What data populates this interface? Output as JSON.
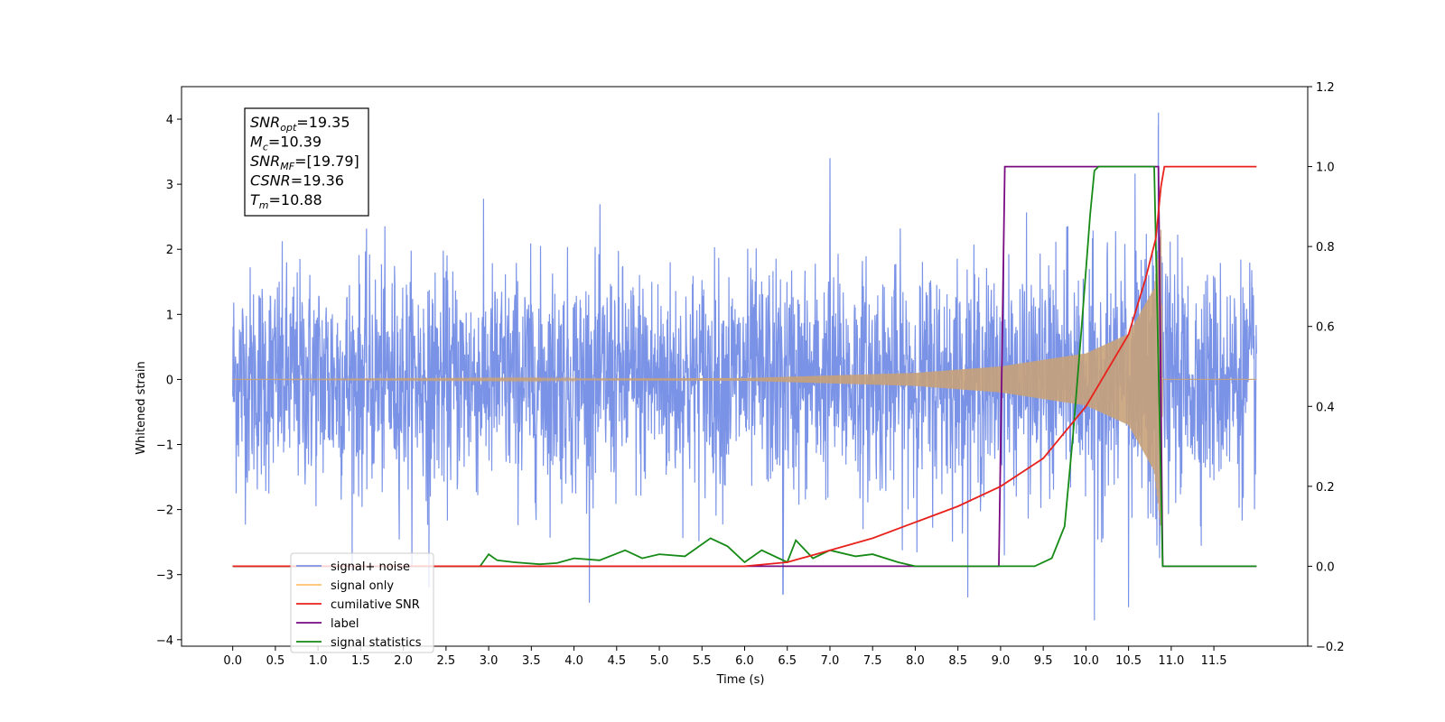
{
  "chart_data": {
    "type": "line",
    "xlabel": "Time (s)",
    "ylabel": "Whitened strain",
    "xlim": [
      -0.6,
      12.6
    ],
    "ylim": [
      -4.1,
      4.5
    ],
    "y2lim": [
      -0.2,
      1.2
    ],
    "grid": false,
    "legend_position": "lower-left",
    "x_ticks": [
      "0.0",
      "0.5",
      "1.0",
      "1.5",
      "2.0",
      "2.5",
      "3.0",
      "3.5",
      "4.0",
      "4.5",
      "5.0",
      "5.5",
      "6.0",
      "6.5",
      "7.0",
      "7.5",
      "8.0",
      "8.5",
      "9.0",
      "9.5",
      "10.0",
      "10.5",
      "11.0",
      "11.5"
    ],
    "y_ticks": [
      "4",
      "3",
      "2",
      "1",
      "0",
      "−1",
      "−2",
      "−3",
      "−4"
    ],
    "y2_ticks": [
      "1.2",
      "1.0",
      "0.8",
      "0.6",
      "0.4",
      "0.2",
      "0.0",
      "−0.2"
    ],
    "annotation": {
      "lines": [
        {
          "base": "SNR",
          "sub": "opt",
          "rest": "=19.35"
        },
        {
          "base": "M",
          "sub": "c",
          "rest": "=10.39"
        },
        {
          "base": "SNR",
          "sub": "MF",
          "rest": "=[19.79]"
        },
        {
          "base": "CSNR",
          "sub": "",
          "rest": "=19.36"
        },
        {
          "base": "T",
          "sub": "m",
          "rest": "=10.88"
        }
      ]
    },
    "series": [
      {
        "name": "signal+ noise",
        "axis": "left",
        "color": "#7b93e6",
        "x_range": [
          0.0,
          12.0
        ],
        "noise_std": 0.85,
        "visible_extremes": [
          {
            "x": 7.0,
            "y": 3.4
          },
          {
            "x": 10.85,
            "y": 4.1
          },
          {
            "x": 10.1,
            "y": -3.7
          },
          {
            "x": 10.5,
            "y": -3.5
          },
          {
            "x": 2.3,
            "y": -3.2
          },
          {
            "x": 6.45,
            "y": -3.3
          }
        ]
      },
      {
        "name": "signal only",
        "axis": "left",
        "color": "#c8a27a",
        "x_range": [
          0.0,
          12.0
        ],
        "envelope_points": [
          {
            "x": 0.0,
            "y": 0.0
          },
          {
            "x": 6.0,
            "y": 0.02
          },
          {
            "x": 8.0,
            "y": 0.1
          },
          {
            "x": 9.0,
            "y": 0.2
          },
          {
            "x": 10.0,
            "y": 0.4
          },
          {
            "x": 10.5,
            "y": 0.7
          },
          {
            "x": 10.8,
            "y": 1.4
          },
          {
            "x": 10.88,
            "y": 2.3
          },
          {
            "x": 10.9,
            "y": 0.0
          },
          {
            "x": 12.0,
            "y": 0.0
          }
        ]
      },
      {
        "name": "cumilative SNR",
        "axis": "right",
        "color": "#e8211c",
        "points": [
          {
            "x": 0.0,
            "y": 0.0
          },
          {
            "x": 6.0,
            "y": 0.0
          },
          {
            "x": 6.5,
            "y": 0.01
          },
          {
            "x": 7.0,
            "y": 0.04
          },
          {
            "x": 7.5,
            "y": 0.07
          },
          {
            "x": 8.0,
            "y": 0.11
          },
          {
            "x": 8.5,
            "y": 0.15
          },
          {
            "x": 9.0,
            "y": 0.2
          },
          {
            "x": 9.5,
            "y": 0.27
          },
          {
            "x": 10.0,
            "y": 0.4
          },
          {
            "x": 10.5,
            "y": 0.58
          },
          {
            "x": 10.7,
            "y": 0.72
          },
          {
            "x": 10.82,
            "y": 0.82
          },
          {
            "x": 10.88,
            "y": 0.95
          },
          {
            "x": 10.92,
            "y": 1.0
          },
          {
            "x": 12.0,
            "y": 1.0
          }
        ]
      },
      {
        "name": "label",
        "axis": "right",
        "color": "#7a0a82",
        "points": [
          {
            "x": 0.0,
            "y": 0.0
          },
          {
            "x": 8.98,
            "y": 0.0
          },
          {
            "x": 9.05,
            "y": 1.0
          },
          {
            "x": 10.85,
            "y": 1.0
          },
          {
            "x": 10.9,
            "y": 0.0
          },
          {
            "x": 12.0,
            "y": 0.0
          }
        ]
      },
      {
        "name": "signal statistics",
        "axis": "right",
        "color": "#168a16",
        "points": [
          {
            "x": 0.0,
            "y": 0.0
          },
          {
            "x": 2.9,
            "y": 0.0
          },
          {
            "x": 3.0,
            "y": 0.03
          },
          {
            "x": 3.1,
            "y": 0.015
          },
          {
            "x": 3.3,
            "y": 0.01
          },
          {
            "x": 3.6,
            "y": 0.005
          },
          {
            "x": 3.8,
            "y": 0.008
          },
          {
            "x": 4.0,
            "y": 0.02
          },
          {
            "x": 4.3,
            "y": 0.015
          },
          {
            "x": 4.6,
            "y": 0.04
          },
          {
            "x": 4.8,
            "y": 0.02
          },
          {
            "x": 5.0,
            "y": 0.03
          },
          {
            "x": 5.3,
            "y": 0.025
          },
          {
            "x": 5.6,
            "y": 0.07
          },
          {
            "x": 5.8,
            "y": 0.05
          },
          {
            "x": 6.0,
            "y": 0.01
          },
          {
            "x": 6.2,
            "y": 0.04
          },
          {
            "x": 6.5,
            "y": 0.01
          },
          {
            "x": 6.6,
            "y": 0.065
          },
          {
            "x": 6.8,
            "y": 0.02
          },
          {
            "x": 7.0,
            "y": 0.04
          },
          {
            "x": 7.3,
            "y": 0.025
          },
          {
            "x": 7.5,
            "y": 0.03
          },
          {
            "x": 7.8,
            "y": 0.01
          },
          {
            "x": 8.0,
            "y": 0.0
          },
          {
            "x": 9.4,
            "y": 0.0
          },
          {
            "x": 9.6,
            "y": 0.02
          },
          {
            "x": 9.75,
            "y": 0.1
          },
          {
            "x": 9.85,
            "y": 0.33
          },
          {
            "x": 9.95,
            "y": 0.6
          },
          {
            "x": 10.05,
            "y": 0.88
          },
          {
            "x": 10.1,
            "y": 0.99
          },
          {
            "x": 10.15,
            "y": 1.0
          },
          {
            "x": 10.8,
            "y": 1.0
          },
          {
            "x": 10.85,
            "y": 0.5
          },
          {
            "x": 10.9,
            "y": 0.0
          },
          {
            "x": 12.0,
            "y": 0.0
          }
        ]
      }
    ],
    "legend_entries": [
      {
        "label": "signal+ noise",
        "color": "#7b93e6"
      },
      {
        "label": "signal only",
        "color": "#ffc06e"
      },
      {
        "label": "cumilative SNR",
        "color": "#e8211c"
      },
      {
        "label": "label",
        "color": "#7a0a82"
      },
      {
        "label": "signal statistics",
        "color": "#168a16"
      }
    ]
  }
}
